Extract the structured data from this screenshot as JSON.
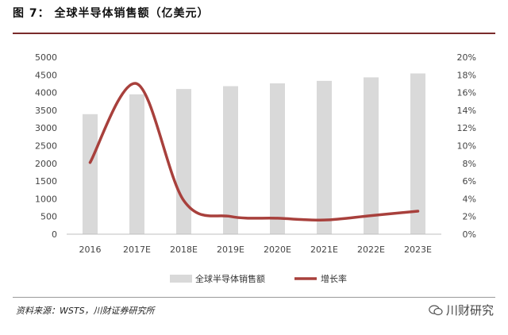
{
  "figure": {
    "title": "图 7：  全球半导体销售额（亿美元）",
    "source": "资料来源：WSTS，川财证券研究所",
    "watermark": "川财研究",
    "watermark_icon": "wechat-icon"
  },
  "chart_data": {
    "type": "bar+line",
    "categories": [
      "2016",
      "2017E",
      "2018E",
      "2019E",
      "2020E",
      "2021E",
      "2022E",
      "2023E"
    ],
    "series": [
      {
        "name": "全球半导体销售额",
        "type": "bar",
        "axis": "left",
        "color": "#d9d9d9",
        "values": [
          3390,
          3950,
          4100,
          4180,
          4260,
          4330,
          4430,
          4540
        ]
      },
      {
        "name": "增长率",
        "type": "line",
        "axis": "right",
        "color": "#a8403c",
        "values": [
          8.1,
          17.0,
          3.8,
          2.0,
          1.8,
          1.6,
          2.1,
          2.6
        ]
      }
    ],
    "left_axis": {
      "min": 0,
      "max": 5000,
      "ticks": [
        "0",
        "500",
        "1000",
        "1500",
        "2000",
        "2500",
        "3000",
        "3500",
        "4000",
        "4500",
        "5000"
      ]
    },
    "right_axis": {
      "min": 0,
      "max": 20,
      "ticks": [
        "0%",
        "2%",
        "4%",
        "6%",
        "8%",
        "10%",
        "12%",
        "14%",
        "16%",
        "18%",
        "20%"
      ]
    },
    "grid": false,
    "legend_position": "bottom"
  }
}
